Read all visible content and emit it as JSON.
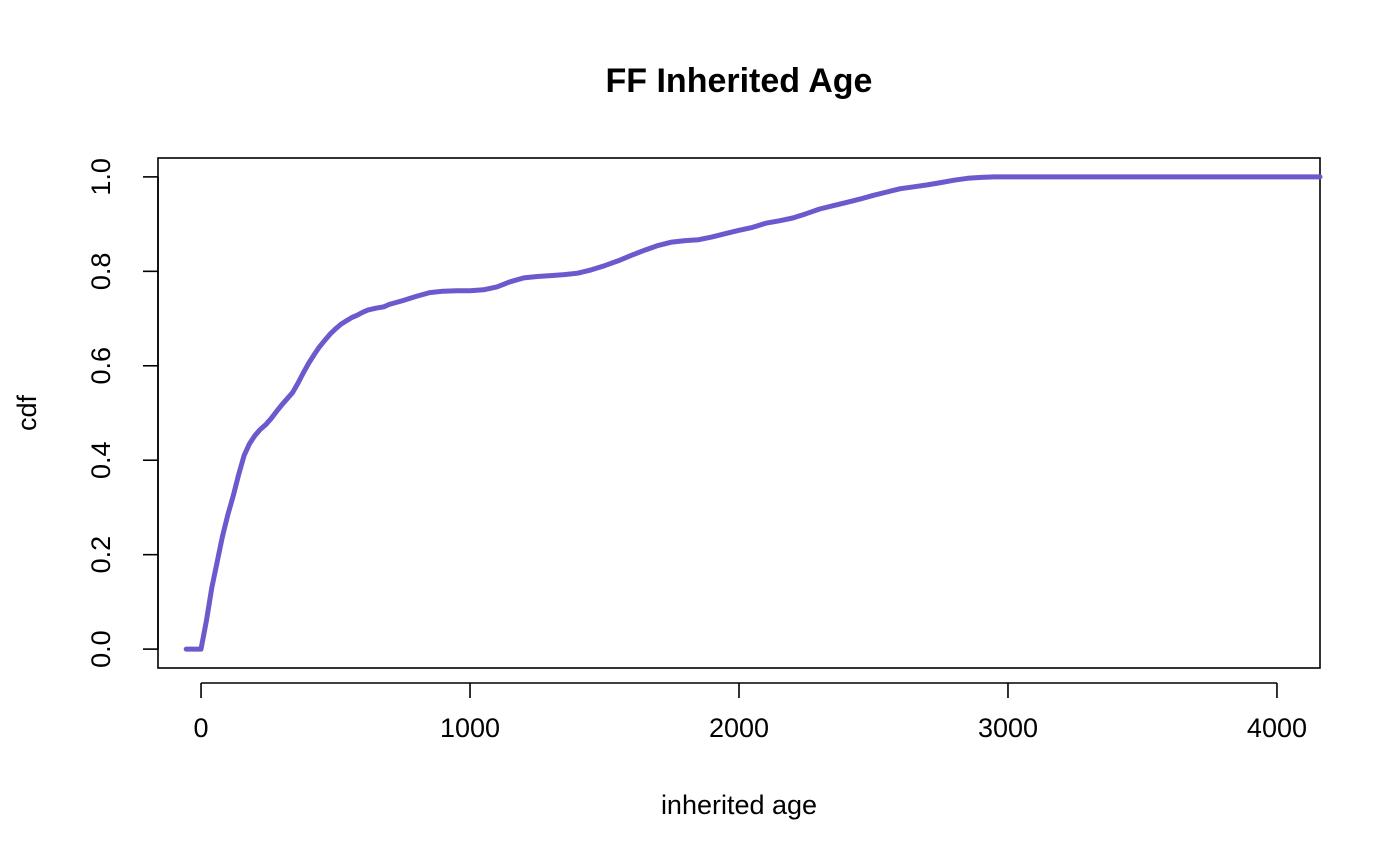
{
  "chart_data": {
    "type": "line",
    "title": "FF Inherited Age",
    "xlabel": "inherited age",
    "ylabel": "cdf",
    "xlim": [
      -160,
      4160
    ],
    "ylim": [
      -0.04,
      1.04
    ],
    "x_ticks": [
      0,
      1000,
      2000,
      3000,
      4000
    ],
    "x_tick_labels": [
      "0",
      "1000",
      "2000",
      "3000",
      "4000"
    ],
    "y_ticks": [
      0.0,
      0.2,
      0.4,
      0.6,
      0.8,
      1.0
    ],
    "y_tick_labels": [
      "0.0",
      "0.2",
      "0.4",
      "0.6",
      "0.8",
      "1.0"
    ],
    "grid": false,
    "legend": "none",
    "series": [
      {
        "color": "#6a5acd",
        "x": [
          -55,
          0,
          20,
          40,
          60,
          80,
          100,
          120,
          140,
          160,
          180,
          200,
          220,
          240,
          260,
          280,
          300,
          320,
          340,
          360,
          380,
          400,
          420,
          440,
          460,
          480,
          500,
          520,
          540,
          560,
          580,
          600,
          620,
          650,
          680,
          700,
          750,
          800,
          850,
          900,
          950,
          1000,
          1050,
          1100,
          1150,
          1200,
          1250,
          1300,
          1350,
          1400,
          1450,
          1500,
          1550,
          1600,
          1650,
          1700,
          1750,
          1800,
          1850,
          1900,
          1950,
          2000,
          2050,
          2100,
          2150,
          2200,
          2250,
          2300,
          2350,
          2400,
          2450,
          2500,
          2550,
          2600,
          2650,
          2700,
          2750,
          2800,
          2850,
          2900,
          2950,
          3000,
          3050,
          3100,
          3150,
          3200,
          3500,
          3800,
          4160
        ],
        "y": [
          0.0,
          0.0,
          0.06,
          0.13,
          0.185,
          0.24,
          0.285,
          0.325,
          0.37,
          0.41,
          0.435,
          0.452,
          0.465,
          0.475,
          0.488,
          0.503,
          0.517,
          0.53,
          0.543,
          0.563,
          0.585,
          0.605,
          0.623,
          0.64,
          0.654,
          0.667,
          0.678,
          0.688,
          0.695,
          0.702,
          0.707,
          0.713,
          0.718,
          0.722,
          0.725,
          0.73,
          0.738,
          0.747,
          0.755,
          0.758,
          0.759,
          0.759,
          0.761,
          0.767,
          0.778,
          0.786,
          0.789,
          0.791,
          0.793,
          0.796,
          0.803,
          0.812,
          0.822,
          0.834,
          0.845,
          0.855,
          0.862,
          0.865,
          0.867,
          0.873,
          0.88,
          0.887,
          0.893,
          0.902,
          0.907,
          0.913,
          0.922,
          0.932,
          0.939,
          0.946,
          0.953,
          0.961,
          0.968,
          0.975,
          0.979,
          0.983,
          0.988,
          0.993,
          0.997,
          0.999,
          1.0,
          1.0,
          1.0,
          1.0,
          1.0,
          1.0,
          1.0,
          1.0,
          1.0
        ]
      }
    ]
  }
}
